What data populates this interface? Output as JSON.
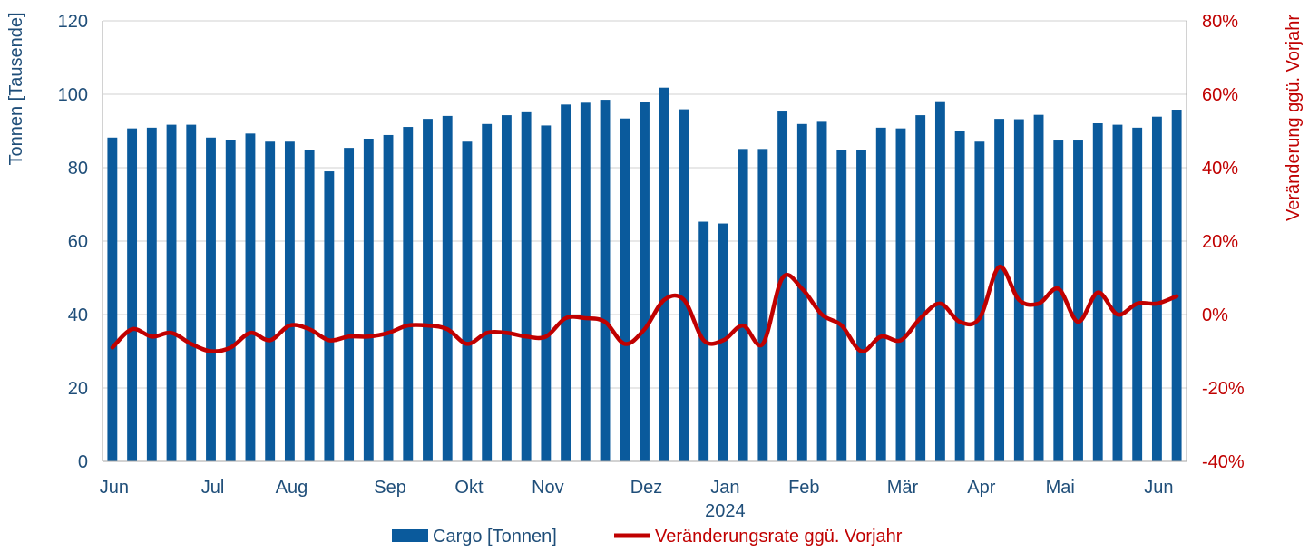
{
  "chart_data": {
    "type": "bar",
    "combo": "bar+line",
    "grid": true,
    "legend_position": "bottom-center",
    "x_labels": [
      "Jun",
      "Jul",
      "Aug",
      "Sep",
      "Okt",
      "Nov",
      "Dez",
      "Jan",
      "Feb",
      "Mär",
      "Apr",
      "Mai",
      "Jun"
    ],
    "x_label_indices": [
      0,
      5,
      9,
      14,
      18,
      22,
      27,
      31,
      35,
      40,
      44,
      48,
      53
    ],
    "year_label": "2024",
    "year_label_index": 31,
    "y_left": {
      "label": "Tonnen [Tausende]",
      "ylim": [
        0,
        120
      ],
      "ticks": [
        "0",
        "20",
        "40",
        "60",
        "80",
        "100",
        "120"
      ]
    },
    "y_right": {
      "label": "Veränderung ggü. Vorjahr",
      "ylim": [
        -40,
        80
      ],
      "ticks": [
        "-40%",
        "-20%",
        "0%",
        "20%",
        "40%",
        "60%",
        "80%"
      ]
    },
    "series": [
      {
        "name": "Cargo [Tonnen]",
        "type": "bar",
        "axis": "left",
        "color": "#0a5a9c",
        "values": [
          88.2,
          90.7,
          90.9,
          91.7,
          91.7,
          88.2,
          87.6,
          89.3,
          87.1,
          87.1,
          84.9,
          79,
          85.4,
          87.9,
          88.9,
          91.1,
          93.3,
          94.1,
          87.1,
          91.9,
          94.3,
          95.1,
          91.5,
          97.2,
          97.7,
          98.5,
          93.4,
          97.9,
          101.8,
          95.9,
          65.3,
          64.8,
          85.1,
          85.1,
          95.3,
          91.9,
          92.5,
          84.9,
          84.7,
          90.9,
          90.7,
          94.3,
          98.1,
          89.9,
          87.1,
          93.3,
          93.2,
          94.4,
          87.4,
          87.4,
          92.1,
          91.7,
          90.9,
          93.9,
          95.8
        ]
      },
      {
        "name": "Veränderungsrate ggü. Vorjahr",
        "type": "line",
        "axis": "right",
        "color": "#c00000",
        "values": [
          -9,
          -4,
          -6,
          -5,
          -8,
          -10,
          -9,
          -5,
          -7,
          -3,
          -4,
          -7,
          -6,
          -6,
          -5,
          -3,
          -3,
          -4,
          -8,
          -5,
          -5,
          -6,
          -6,
          -1,
          -1,
          -2,
          -8,
          -4,
          4,
          4,
          -7,
          -7,
          -3,
          -8,
          10,
          7,
          0,
          -3,
          -10,
          -6,
          -7,
          -1,
          3,
          -2,
          -1,
          13,
          4,
          3,
          7,
          -2,
          6,
          0,
          3,
          3,
          5
        ]
      }
    ]
  },
  "legend": {
    "bar_label": "Cargo [Tonnen]",
    "line_label": "Veränderungsrate ggü. Vorjahr"
  }
}
